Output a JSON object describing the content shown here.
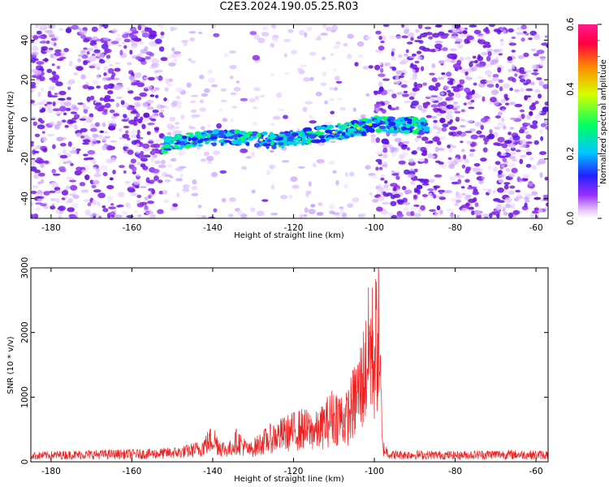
{
  "title": "C2E3.2024.190.05.25.R03",
  "colors": {
    "axis": "#000000",
    "snr_line": "#ee2222",
    "noise": "#7a1ee8",
    "colorbar": [
      "#ffffff",
      "#e6c8ff",
      "#9b30ff",
      "#2020ff",
      "#00c8ff",
      "#00ff60",
      "#d8ff00",
      "#ff8a00",
      "#ff0040",
      "#ff1a8c"
    ]
  },
  "chart_data": [
    {
      "type": "heatmap",
      "name": "spectrogram",
      "xlabel": "Height of straight line (km)",
      "ylabel": "Frequency (Hz)",
      "xlim": [
        -185,
        -57
      ],
      "ylim": [
        -50,
        48
      ],
      "xticks": [
        -180,
        -160,
        -140,
        -120,
        -100,
        -80,
        -60
      ],
      "yticks": [
        -40,
        -20,
        0,
        20,
        40
      ],
      "colorbar": {
        "label": "Normalized spectral amplitude",
        "range": [
          0,
          0.6
        ],
        "ticks": [
          "0.0",
          "0.2",
          "0.4",
          "0.6"
        ]
      },
      "signal_track": [
        {
          "x": -152,
          "y": -13
        },
        {
          "x": -145,
          "y": -10
        },
        {
          "x": -135,
          "y": -9
        },
        {
          "x": -125,
          "y": -11
        },
        {
          "x": -115,
          "y": -8
        },
        {
          "x": -105,
          "y": -5
        },
        {
          "x": -100,
          "y": -2
        },
        {
          "x": -95,
          "y": -3
        },
        {
          "x": -87,
          "y": -3
        }
      ],
      "grid": false
    },
    {
      "type": "line",
      "name": "snr",
      "xlabel": "Height of straight line (km)",
      "ylabel": "SNR (10 * v/v)",
      "xlim": [
        -185,
        -57
      ],
      "ylim": [
        0,
        3000
      ],
      "xticks": [
        -180,
        -160,
        -140,
        -120,
        -100,
        -80,
        -60
      ],
      "yticks": [
        0,
        1000,
        2000,
        3000
      ],
      "series": [
        {
          "x": [
            -185,
            -175,
            -165,
            -155,
            -148,
            -143,
            -140,
            -138,
            -136,
            -134,
            -131,
            -128,
            -125,
            -122,
            -118,
            -114,
            -110,
            -107,
            -104,
            -102,
            -101,
            -100,
            -99,
            -98,
            -96,
            -90,
            -80,
            -70,
            -60,
            -57
          ],
          "y": [
            130,
            150,
            160,
            170,
            200,
            280,
            500,
            300,
            250,
            450,
            240,
            400,
            520,
            600,
            700,
            650,
            1000,
            900,
            1450,
            2000,
            2500,
            2200,
            2950,
            300,
            150,
            150,
            140,
            160,
            150,
            150
          ]
        }
      ],
      "grid": false
    }
  ]
}
